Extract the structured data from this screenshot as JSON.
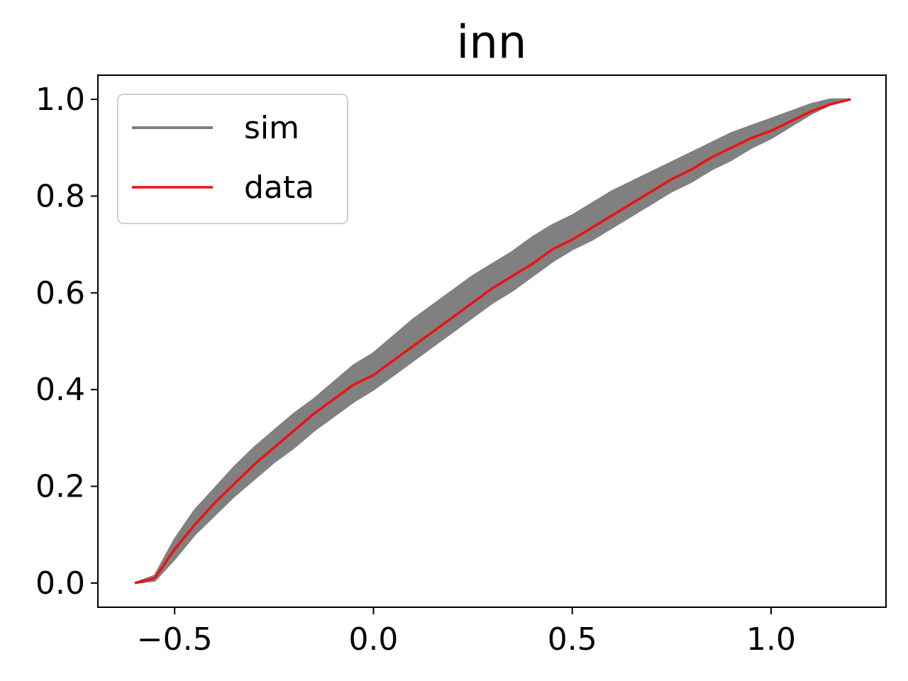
{
  "chart_data": {
    "type": "line",
    "title": "inn",
    "x": [
      -0.6,
      -0.55,
      -0.5,
      -0.45,
      -0.4,
      -0.35,
      -0.3,
      -0.25,
      -0.2,
      -0.15,
      -0.1,
      -0.05,
      0,
      0.05,
      0.1,
      0.15,
      0.2,
      0.25,
      0.3,
      0.35,
      0.4,
      0.45,
      0.5,
      0.55,
      0.6,
      0.65,
      0.7,
      0.75,
      0.8,
      0.85,
      0.9,
      0.95,
      1.0,
      1.05,
      1.1,
      1.15,
      1.2
    ],
    "series": [
      {
        "name": "sim",
        "color": "#808080",
        "upper": [
          0,
          0.015,
          0.09,
          0.15,
          0.195,
          0.24,
          0.28,
          0.315,
          0.35,
          0.38,
          0.415,
          0.45,
          0.475,
          0.51,
          0.545,
          0.575,
          0.605,
          0.635,
          0.66,
          0.685,
          0.715,
          0.74,
          0.76,
          0.785,
          0.81,
          0.83,
          0.85,
          0.87,
          0.89,
          0.91,
          0.93,
          0.945,
          0.96,
          0.975,
          0.99,
          1.0,
          1.0
        ],
        "lower": [
          0,
          0.005,
          0.05,
          0.1,
          0.14,
          0.18,
          0.215,
          0.25,
          0.28,
          0.315,
          0.345,
          0.375,
          0.4,
          0.43,
          0.46,
          0.49,
          0.52,
          0.55,
          0.58,
          0.605,
          0.635,
          0.665,
          0.69,
          0.71,
          0.735,
          0.76,
          0.785,
          0.81,
          0.83,
          0.855,
          0.875,
          0.9,
          0.92,
          0.945,
          0.97,
          0.99,
          1.0
        ]
      },
      {
        "name": "data",
        "color": "#ee1111",
        "values": [
          0,
          0.01,
          0.07,
          0.12,
          0.165,
          0.205,
          0.245,
          0.28,
          0.315,
          0.35,
          0.38,
          0.41,
          0.43,
          0.46,
          0.49,
          0.52,
          0.55,
          0.58,
          0.61,
          0.635,
          0.66,
          0.69,
          0.71,
          0.735,
          0.76,
          0.785,
          0.81,
          0.835,
          0.855,
          0.88,
          0.9,
          0.92,
          0.935,
          0.955,
          0.975,
          0.99,
          1.0
        ]
      }
    ],
    "xlim": [
      -0.693,
      1.289
    ],
    "ylim": [
      -0.05,
      1.05
    ],
    "xticks": [
      {
        "value": -0.5,
        "label": "−0.5"
      },
      {
        "value": 0,
        "label": "0.0"
      },
      {
        "value": 0.5,
        "label": "0.5"
      },
      {
        "value": 1.0,
        "label": "1.0"
      }
    ],
    "yticks": [
      {
        "value": 0,
        "label": "0.0"
      },
      {
        "value": 0.2,
        "label": "0.2"
      },
      {
        "value": 0.4,
        "label": "0.4"
      },
      {
        "value": 0.6,
        "label": "0.6"
      },
      {
        "value": 0.8,
        "label": "0.8"
      },
      {
        "value": 1.0,
        "label": "1.0"
      }
    ],
    "grid": false,
    "legend": "upper left"
  }
}
